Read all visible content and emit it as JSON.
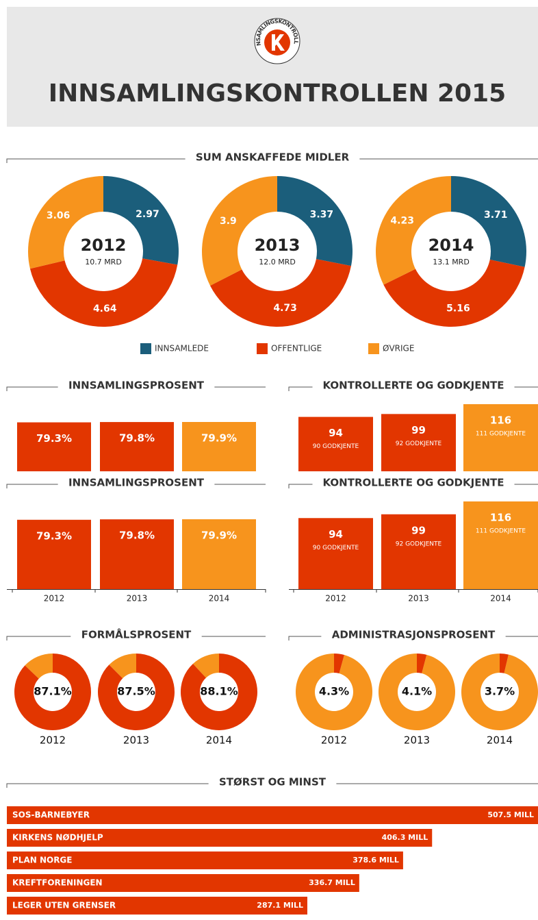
{
  "header": {
    "logo_text": "INNSAMLINGSKONTROLLEN",
    "title": "INNSAMLINGSKONTROLLEN 2015"
  },
  "chart_data": [
    {
      "type": "donut",
      "title": "SUM ANSKAFFEDE MIDLER",
      "categories": [
        "2012",
        "2013",
        "2014"
      ],
      "total_labels": [
        "10.7 MRD",
        "12.0 MRD",
        "13.1 MRD"
      ],
      "series": [
        {
          "name": "INNSAMLEDE",
          "color": "#1b5e7b",
          "values": [
            2.97,
            3.37,
            3.71
          ]
        },
        {
          "name": "OFFENTLIGE",
          "color": "#e23600",
          "values": [
            4.64,
            4.73,
            5.16
          ]
        },
        {
          "name": "ØVRIGE",
          "color": "#f7941d",
          "values": [
            3.06,
            3.9,
            4.23
          ]
        }
      ],
      "legend": true
    },
    {
      "type": "bar",
      "title": "INNSAMLINGSPROSENT",
      "values": [
        79.3,
        79.8,
        79.9
      ],
      "value_labels": [
        "79.3%",
        "79.8%",
        "79.9%"
      ],
      "colors": [
        "#e23600",
        "#e23600",
        "#f7941d"
      ]
    },
    {
      "type": "bar",
      "title": "KONTROLLERTE OG GODKJENTE",
      "values": [
        94,
        99,
        116
      ],
      "sublabels": [
        "90 GODKJENTE",
        "92 GODKJENTE",
        "111 GODKJENTE"
      ],
      "colors": [
        "#e23600",
        "#e23600",
        "#f7941d"
      ]
    },
    {
      "type": "bar",
      "title": "INNSAMLINGSPROSENT",
      "categories": [
        "2012",
        "2013",
        "2014"
      ],
      "values": [
        79.3,
        79.8,
        79.9
      ],
      "value_labels": [
        "79.3%",
        "79.8%",
        "79.9%"
      ],
      "colors": [
        "#e23600",
        "#e23600",
        "#f7941d"
      ]
    },
    {
      "type": "bar",
      "title": "KONTROLLERTE OG GODKJENTE",
      "categories": [
        "2012",
        "2013",
        "2014"
      ],
      "values": [
        94,
        99,
        116
      ],
      "sublabels": [
        "90 GODKJENTE",
        "92 GODKJENTE",
        "111 GODKJENTE"
      ],
      "colors": [
        "#e23600",
        "#e23600",
        "#f7941d"
      ]
    },
    {
      "type": "ring",
      "title": "FORMÅLSPROSENT",
      "categories": [
        "2012",
        "2013",
        "2014"
      ],
      "values": [
        87.1,
        87.5,
        88.1
      ],
      "value_labels": [
        "87.1%",
        "87.5%",
        "88.1%"
      ],
      "color": "#e23600",
      "rest_color": "#f7941d",
      "ylim": [
        0,
        100
      ]
    },
    {
      "type": "ring",
      "title": "ADMINISTRASJONSPROSENT",
      "categories": [
        "2012",
        "2013",
        "2014"
      ],
      "values": [
        4.3,
        4.1,
        3.7
      ],
      "value_labels": [
        "4.3%",
        "4.1%",
        "3.7%"
      ],
      "color": "#e23600",
      "rest_color": "#f7941d",
      "ylim": [
        0,
        100
      ]
    },
    {
      "type": "hbar",
      "title": "STØRST OG MINST",
      "categories": [
        "SOS-BARNEBYER",
        "KIRKENS NØDHJELP",
        "PLAN NORGE",
        "KREFTFORENINGEN",
        "LEGER UTEN GRENSER"
      ],
      "values": [
        507.5,
        406.3,
        378.6,
        336.7,
        287.1
      ],
      "value_labels": [
        "507.5 MILL",
        "406.3 MILL",
        "378.6 MILL",
        "336.7 MILL",
        "287.1 MILL"
      ],
      "color": "#e23600"
    }
  ]
}
